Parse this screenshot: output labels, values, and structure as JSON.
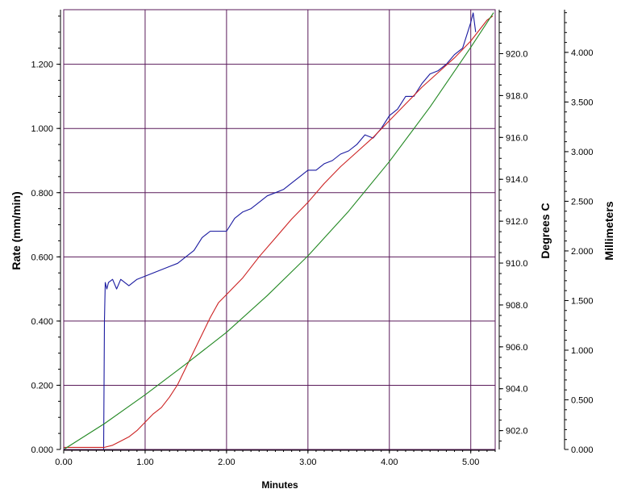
{
  "chart_data": {
    "type": "line",
    "title": "",
    "xlabel": "Minutes",
    "xlim": [
      0,
      5.3
    ],
    "x_ticks": [
      0,
      1,
      2,
      3,
      4,
      5
    ],
    "x_tick_labels": [
      "0.00",
      "1.00",
      "2.00",
      "3.00",
      "4.00",
      "5.00"
    ],
    "grid": true,
    "colors": {
      "grid": "#5a1a5a",
      "rate": "#1a1aa0",
      "temperature": "#cc2222",
      "millimeters": "#228822",
      "frame": "#5a1a5a"
    },
    "axes": {
      "rate": {
        "label": "Rate (mm/min)",
        "side": "left",
        "lim": [
          0,
          1.37
        ],
        "ticks": [
          0,
          0.2,
          0.4,
          0.6,
          0.8,
          1.0,
          1.2
        ],
        "tick_labels": [
          "0.000",
          "0.200",
          "0.400",
          "0.600",
          "0.800",
          "1.000",
          "1.200"
        ]
      },
      "temperature": {
        "label": "Degrees C",
        "side": "right",
        "lim": [
          901.1,
          922.1
        ],
        "ticks": [
          902,
          904,
          906,
          908,
          910,
          912,
          914,
          916,
          918,
          920
        ],
        "tick_labels": [
          "902.0",
          "904.0",
          "906.0",
          "908.0",
          "910.0",
          "912.0",
          "914.0",
          "916.0",
          "918.0",
          "920.0"
        ]
      },
      "millimeters": {
        "label": "Millimeters",
        "side": "far-right",
        "lim": [
          0,
          4.43
        ],
        "ticks": [
          0,
          0.5,
          1.0,
          1.5,
          2.0,
          2.5,
          3.0,
          3.5,
          4.0
        ],
        "tick_labels": [
          "0.000",
          "0.500",
          "1.000",
          "1.500",
          "2.000",
          "2.500",
          "3.000",
          "3.500",
          "4.000"
        ]
      }
    },
    "series": [
      {
        "axis": "rate",
        "x": [
          0.0,
          0.49,
          0.5,
          0.51,
          0.53,
          0.55,
          0.6,
          0.65,
          0.7,
          0.8,
          0.9,
          1.0,
          1.1,
          1.2,
          1.3,
          1.4,
          1.5,
          1.6,
          1.7,
          1.8,
          1.9,
          2.0,
          2.1,
          2.2,
          2.3,
          2.4,
          2.5,
          2.6,
          2.7,
          2.8,
          2.9,
          3.0,
          3.1,
          3.2,
          3.3,
          3.4,
          3.5,
          3.6,
          3.7,
          3.8,
          3.9,
          4.0,
          4.1,
          4.2,
          4.3,
          4.4,
          4.5,
          4.6,
          4.7,
          4.8,
          4.9,
          5.0,
          5.03,
          5.06
        ],
        "values": [
          0.0,
          0.0,
          0.4,
          0.52,
          0.5,
          0.52,
          0.53,
          0.5,
          0.53,
          0.51,
          0.53,
          0.54,
          0.55,
          0.56,
          0.57,
          0.58,
          0.6,
          0.62,
          0.66,
          0.68,
          0.68,
          0.68,
          0.72,
          0.74,
          0.75,
          0.77,
          0.79,
          0.8,
          0.81,
          0.83,
          0.85,
          0.87,
          0.87,
          0.89,
          0.9,
          0.92,
          0.93,
          0.95,
          0.98,
          0.97,
          1.0,
          1.04,
          1.06,
          1.1,
          1.1,
          1.14,
          1.17,
          1.18,
          1.2,
          1.23,
          1.25,
          1.33,
          1.36,
          1.3
        ]
      },
      {
        "axis": "temperature",
        "x": [
          0.0,
          0.5,
          0.6,
          0.7,
          0.8,
          0.9,
          1.0,
          1.1,
          1.2,
          1.3,
          1.4,
          1.5,
          1.6,
          1.7,
          1.8,
          1.9,
          2.0,
          2.2,
          2.4,
          2.6,
          2.8,
          3.0,
          3.2,
          3.4,
          3.6,
          3.8,
          4.0,
          4.2,
          4.4,
          4.6,
          4.8,
          5.0,
          5.2,
          5.27
        ],
        "values": [
          901.2,
          901.2,
          901.3,
          901.5,
          901.7,
          902.0,
          902.4,
          902.8,
          903.1,
          903.6,
          904.2,
          905.0,
          905.8,
          906.6,
          907.4,
          908.1,
          908.5,
          909.3,
          910.3,
          911.2,
          912.1,
          912.9,
          913.8,
          914.6,
          915.3,
          916.0,
          916.8,
          917.6,
          918.4,
          919.1,
          919.8,
          920.6,
          921.6,
          921.8
        ]
      },
      {
        "axis": "millimeters",
        "x": [
          0.0,
          0.5,
          1.0,
          1.5,
          2.0,
          2.5,
          3.0,
          3.5,
          4.0,
          4.5,
          5.0,
          5.28
        ],
        "values": [
          0.0,
          0.26,
          0.55,
          0.86,
          1.18,
          1.55,
          1.95,
          2.4,
          2.9,
          3.45,
          4.05,
          4.4
        ]
      }
    ]
  }
}
